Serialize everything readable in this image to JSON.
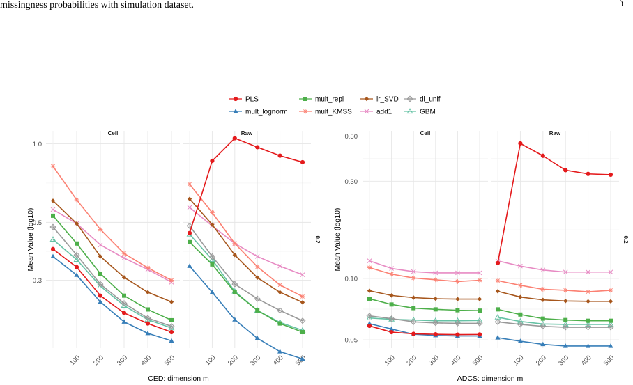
{
  "caption": {
    "left": "missingness probabilities with simulation dataset.",
    "right": ")"
  },
  "legend": {
    "items": [
      {
        "name": "PLS",
        "color": "#e41a1c",
        "marker": "circle"
      },
      {
        "name": "mult_repl",
        "color": "#4daf4a",
        "marker": "square"
      },
      {
        "name": "lr_SVD",
        "color": "#a6561c",
        "marker": "diamond"
      },
      {
        "name": "dl_unif",
        "color": "#999999",
        "marker": "diamond-open"
      },
      {
        "name": "mult_lognorm",
        "color": "#377eb8",
        "marker": "triangle"
      },
      {
        "name": "mult_KMSS",
        "color": "#fb8072",
        "marker": "asterisk"
      },
      {
        "name": "add1",
        "color": "#e78ac3",
        "marker": "x"
      },
      {
        "name": "GBM",
        "color": "#66c2a5",
        "marker": "triangle-open"
      }
    ]
  },
  "chart_data": [
    {
      "type": "line",
      "xlabel": "CED: dimension m",
      "ylabel": "Mean Value (log10)",
      "y_scale": "log10",
      "ylim": [
        0.165,
        1.12
      ],
      "y_ticks": [
        {
          "value": 1.0,
          "label": "1.0"
        },
        {
          "value": 0.5,
          "label": "0.5"
        },
        {
          "value": 0.3,
          "label": "0.3"
        }
      ],
      "x": [
        50,
        100,
        200,
        300,
        400,
        500
      ],
      "x_ticks": [
        100,
        200,
        300,
        400,
        500
      ],
      "strip_right": "0.2",
      "grid": true,
      "legend": "top",
      "facets": [
        {
          "name": "Ceil",
          "series": [
            {
              "name": "PLS",
              "values": [
                0.395,
                0.337,
                0.262,
                0.225,
                0.205,
                0.19
              ]
            },
            {
              "name": "mult_lognorm",
              "values": [
                0.37,
                0.314,
                0.248,
                0.208,
                0.188,
                0.176
              ]
            },
            {
              "name": "mult_repl",
              "values": [
                0.53,
                0.415,
                0.318,
                0.262,
                0.232,
                0.211
              ]
            },
            {
              "name": "mult_KMSS",
              "values": [
                0.82,
                0.61,
                0.47,
                0.38,
                0.335,
                0.3
              ]
            },
            {
              "name": "lr_SVD",
              "values": [
                0.605,
                0.495,
                0.37,
                0.308,
                0.27,
                0.248
              ]
            },
            {
              "name": "add1",
              "values": [
                0.56,
                0.495,
                0.41,
                0.365,
                0.33,
                0.295
              ]
            },
            {
              "name": "dl_unif",
              "values": [
                0.48,
                0.375,
                0.29,
                0.245,
                0.215,
                0.2
              ]
            },
            {
              "name": "GBM",
              "values": [
                0.43,
                0.36,
                0.285,
                0.24,
                0.212,
                0.197
              ]
            }
          ]
        },
        {
          "name": "Raw",
          "series": [
            {
              "name": "PLS",
              "values": [
                0.455,
                0.86,
                1.05,
                0.97,
                0.9,
                0.85
              ]
            },
            {
              "name": "mult_lognorm",
              "values": [
                0.34,
                0.27,
                0.212,
                0.18,
                0.16,
                0.15
              ]
            },
            {
              "name": "mult_repl",
              "values": [
                0.42,
                0.345,
                0.27,
                0.23,
                0.205,
                0.19
              ]
            },
            {
              "name": "mult_KMSS",
              "values": [
                0.7,
                0.545,
                0.415,
                0.338,
                0.288,
                0.26
              ]
            },
            {
              "name": "lr_SVD",
              "values": [
                0.615,
                0.49,
                0.375,
                0.307,
                0.27,
                0.247
              ]
            },
            {
              "name": "add1",
              "values": [
                0.57,
                0.485,
                0.415,
                0.37,
                0.34,
                0.315
              ]
            },
            {
              "name": "dl_unif",
              "values": [
                0.485,
                0.37,
                0.29,
                0.255,
                0.23,
                0.21
              ]
            },
            {
              "name": "GBM",
              "values": [
                0.45,
                0.36,
                0.272,
                0.23,
                0.207,
                0.193
              ]
            }
          ]
        }
      ]
    },
    {
      "type": "line",
      "xlabel": "ADCS: dimension m",
      "ylabel": "Mean Value (log10)",
      "y_scale": "log10",
      "ylim": [
        0.0455,
        0.53
      ],
      "y_ticks": [
        {
          "value": 0.5,
          "label": "0.50"
        },
        {
          "value": 0.3,
          "label": "0.30"
        },
        {
          "value": 0.1,
          "label": "0.10"
        },
        {
          "value": 0.05,
          "label": "0.05"
        }
      ],
      "x": [
        50,
        100,
        200,
        300,
        400,
        500
      ],
      "x_ticks": [
        100,
        200,
        300,
        400,
        500
      ],
      "strip_right": "0.2",
      "grid": true,
      "facets": [
        {
          "name": "Ceil",
          "series": [
            {
              "name": "PLS",
              "values": [
                0.0585,
                0.0545,
                0.0535,
                0.0532,
                0.053,
                0.0531
              ]
            },
            {
              "name": "mult_lognorm",
              "values": [
                0.06,
                0.0565,
                0.0532,
                0.0525,
                0.0522,
                0.0522
              ]
            },
            {
              "name": "mult_repl",
              "values": [
                0.0795,
                0.0745,
                0.0715,
                0.0705,
                0.0698,
                0.0695
              ]
            },
            {
              "name": "mult_KMSS",
              "values": [
                0.113,
                0.105,
                0.1005,
                0.0985,
                0.0965,
                0.098
              ]
            },
            {
              "name": "lr_SVD",
              "values": [
                0.087,
                0.0825,
                0.0805,
                0.0795,
                0.0792,
                0.0792
              ]
            },
            {
              "name": "add1",
              "values": [
                0.122,
                0.112,
                0.108,
                0.1065,
                0.1065,
                0.1065
              ]
            },
            {
              "name": "dl_unif",
              "values": [
                0.0655,
                0.0635,
                0.0612,
                0.0605,
                0.0602,
                0.0602
              ]
            },
            {
              "name": "GBM",
              "values": [
                0.064,
                0.063,
                0.0625,
                0.062,
                0.062,
                0.0622
              ]
            }
          ]
        },
        {
          "name": "Raw",
          "series": [
            {
              "name": "PLS",
              "values": [
                0.119,
                0.46,
                0.4,
                0.34,
                0.326,
                0.323
              ]
            },
            {
              "name": "mult_lognorm",
              "values": [
                0.0512,
                0.0492,
                0.0475,
                0.0466,
                0.0466,
                0.0466
              ]
            },
            {
              "name": "mult_repl",
              "values": [
                0.0705,
                0.0665,
                0.0635,
                0.0625,
                0.062,
                0.062
              ]
            },
            {
              "name": "mult_KMSS",
              "values": [
                0.0975,
                0.0925,
                0.0885,
                0.0875,
                0.086,
                0.0875
              ]
            },
            {
              "name": "lr_SVD",
              "values": [
                0.0865,
                0.081,
                0.0785,
                0.0775,
                0.0772,
                0.0772
              ]
            },
            {
              "name": "add1",
              "values": [
                0.122,
                0.115,
                0.11,
                0.1075,
                0.1075,
                0.1075
              ]
            },
            {
              "name": "dl_unif",
              "values": [
                0.0612,
                0.0595,
                0.0582,
                0.0576,
                0.0576,
                0.0576
              ]
            },
            {
              "name": "GBM",
              "values": [
                0.0645,
                0.0615,
                0.0598,
                0.0595,
                0.0595,
                0.0595
              ]
            }
          ]
        }
      ]
    }
  ]
}
